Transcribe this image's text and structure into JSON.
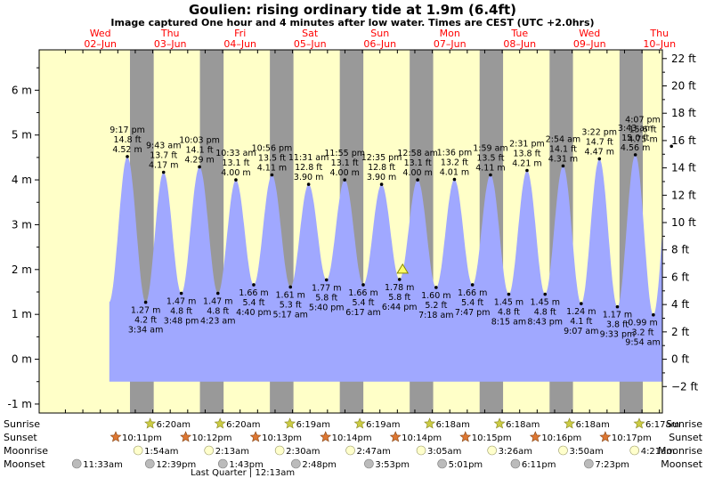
{
  "header": {
    "title": "Goulien: rising  ordinary tide at 1.9m (6.4ft)",
    "subtitle": "Image captured One hour and 4 minutes after low water. Times are CEST (UTC +2.0hrs)"
  },
  "colors": {
    "day_bg": "#ffffc8",
    "night_bg": "#999999",
    "tide_fill": "#a0a8ff",
    "day_label": "#ff0000",
    "marker": "#ffff66",
    "sun_star": "#cccc44",
    "sunset_star": "#dd7733",
    "moon": "#ffffcc",
    "moonset": "#bbbbbb"
  },
  "chart_data": {
    "type": "area",
    "title": "Goulien: rising  ordinary tide at 1.9m (6.4ft)",
    "ylabel": "",
    "ylim": [
      -1.2,
      6.9
    ],
    "left_ticks": [
      "-1 m",
      "0 m",
      "1 m",
      "2 m",
      "3 m",
      "4 m",
      "5 m",
      "6 m"
    ],
    "left_tick_values": [
      -1,
      0,
      1,
      2,
      3,
      4,
      5,
      6
    ],
    "right_ticks": [
      "−2 ft",
      "0 ft",
      "2 ft",
      "4 ft",
      "6 ft",
      "8 ft",
      "10 ft",
      "12 ft",
      "14 ft",
      "16 ft",
      "18 ft",
      "20 ft",
      "22 ft"
    ],
    "right_tick_values_ft": [
      -2,
      0,
      2,
      4,
      6,
      8,
      10,
      12,
      14,
      16,
      18,
      20,
      22
    ],
    "x_range_hours": [
      -9,
      205
    ],
    "days": [
      {
        "name": "Wed",
        "date": "02–Jun",
        "noon_h": 12
      },
      {
        "name": "Thu",
        "date": "03–Jun",
        "noon_h": 36
      },
      {
        "name": "Fri",
        "date": "04–Jun",
        "noon_h": 60
      },
      {
        "name": "Sat",
        "date": "05–Jun",
        "noon_h": 84
      },
      {
        "name": "Sun",
        "date": "06–Jun",
        "noon_h": 108
      },
      {
        "name": "Mon",
        "date": "07–Jun",
        "noon_h": 132
      },
      {
        "name": "Tue",
        "date": "08–Jun",
        "noon_h": 156
      },
      {
        "name": "Wed",
        "date": "09–Jun",
        "noon_h": 180
      },
      {
        "name": "Thu",
        "date": "10–Jun",
        "noon_h": 204
      }
    ],
    "nights": [
      {
        "start_h": 22.18,
        "end_h": 30.33
      },
      {
        "start_h": 46.2,
        "end_h": 54.33
      },
      {
        "start_h": 70.22,
        "end_h": 78.32
      },
      {
        "start_h": 94.23,
        "end_h": 102.32
      },
      {
        "start_h": 118.23,
        "end_h": 126.3
      },
      {
        "start_h": 142.25,
        "end_h": 150.3
      },
      {
        "start_h": 166.27,
        "end_h": 174.3
      },
      {
        "start_h": 190.28,
        "end_h": 198.28
      }
    ],
    "tide_range_hours": [
      -9,
      205
    ],
    "extremes": [
      {
        "t_h": 21.28,
        "m": 4.52,
        "time": "9:17 pm",
        "ft": "14.8 ft",
        "mtxt": "4.52 m",
        "type": "high"
      },
      {
        "t_h": 27.57,
        "m": 1.27,
        "time": "3:34 am",
        "ft": "4.2 ft",
        "mtxt": "1.27 m",
        "type": "low"
      },
      {
        "t_h": 33.72,
        "m": 4.17,
        "time": "9:43 am",
        "ft": "13.7 ft",
        "mtxt": "4.17 m",
        "type": "high"
      },
      {
        "t_h": 39.8,
        "m": 1.47,
        "time": "3:48 pm",
        "ft": "4.8 ft",
        "mtxt": "1.47 m",
        "type": "low"
      },
      {
        "t_h": 46.05,
        "m": 4.29,
        "time": "10:03 pm",
        "ft": "14.1 ft",
        "mtxt": "4.29 m",
        "type": "high"
      },
      {
        "t_h": 52.38,
        "m": 1.47,
        "time": "4:23 am",
        "ft": "4.8 ft",
        "mtxt": "1.47 m",
        "type": "low"
      },
      {
        "t_h": 58.55,
        "m": 4.0,
        "time": "10:33 am",
        "ft": "13.1 ft",
        "mtxt": "4.00 m",
        "type": "high"
      },
      {
        "t_h": 64.67,
        "m": 1.66,
        "time": "4:40 pm",
        "ft": "5.4 ft",
        "mtxt": "1.66 m",
        "type": "low"
      },
      {
        "t_h": 70.93,
        "m": 4.11,
        "time": "10:56 pm",
        "ft": "13.5 ft",
        "mtxt": "4.11 m",
        "type": "high"
      },
      {
        "t_h": 77.28,
        "m": 1.61,
        "time": "5:17 am",
        "ft": "5.3 ft",
        "mtxt": "1.61 m",
        "type": "low"
      },
      {
        "t_h": 83.52,
        "m": 3.9,
        "time": "11:31 am",
        "ft": "12.8 ft",
        "mtxt": "3.90 m",
        "type": "high"
      },
      {
        "t_h": 89.67,
        "m": 1.77,
        "time": "5:40 pm",
        "ft": "5.8 ft",
        "mtxt": "1.77 m",
        "type": "low"
      },
      {
        "t_h": 95.92,
        "m": 4.0,
        "time": "11:55 pm",
        "ft": "13.1 ft",
        "mtxt": "4.00 m",
        "type": "high"
      },
      {
        "t_h": 102.28,
        "m": 1.66,
        "time": "6:17 am",
        "ft": "5.4 ft",
        "mtxt": "1.66 m",
        "type": "low"
      },
      {
        "t_h": 108.58,
        "m": 3.9,
        "time": "12:35 pm",
        "ft": "12.8 ft",
        "mtxt": "3.90 m",
        "type": "high"
      },
      {
        "t_h": 114.73,
        "m": 1.78,
        "time": "6:44 pm",
        "ft": "5.8 ft",
        "mtxt": "1.78 m",
        "type": "low"
      },
      {
        "t_h": 120.97,
        "m": 4.0,
        "time": "12:58 am",
        "ft": "13.1 ft",
        "mtxt": "4.00 m",
        "type": "high"
      },
      {
        "t_h": 127.3,
        "m": 1.6,
        "time": "7:18 am",
        "ft": "5.2 ft",
        "mtxt": "1.60 m",
        "type": "low"
      },
      {
        "t_h": 133.6,
        "m": 4.01,
        "time": "1:36 pm",
        "ft": "13.2 ft",
        "mtxt": "4.01 m",
        "type": "high"
      },
      {
        "t_h": 139.78,
        "m": 1.66,
        "time": "7:47 pm",
        "ft": "5.4 ft",
        "mtxt": "1.66 m",
        "type": "low"
      },
      {
        "t_h": 145.98,
        "m": 4.11,
        "time": "1:59 am",
        "ft": "13.5 ft",
        "mtxt": "4.11 m",
        "type": "high"
      },
      {
        "t_h": 152.25,
        "m": 1.45,
        "time": "8:15 am",
        "ft": "4.8 ft",
        "mtxt": "1.45 m",
        "type": "low"
      },
      {
        "t_h": 158.52,
        "m": 4.21,
        "time": "2:31 pm",
        "ft": "13.8 ft",
        "mtxt": "4.21 m",
        "type": "high"
      },
      {
        "t_h": 164.72,
        "m": 1.45,
        "time": "8:43 pm",
        "ft": "4.8 ft",
        "mtxt": "1.45 m",
        "type": "low"
      },
      {
        "t_h": 170.9,
        "m": 4.31,
        "time": "2:54 am",
        "ft": "14.1 ft",
        "mtxt": "4.31 m",
        "type": "high"
      },
      {
        "t_h": 177.12,
        "m": 1.24,
        "time": "9:07 am",
        "ft": "4.1 ft",
        "mtxt": "1.24 m",
        "type": "low"
      },
      {
        "t_h": 183.37,
        "m": 4.47,
        "time": "3:22 pm",
        "ft": "14.7 ft",
        "mtxt": "4.47 m",
        "type": "high"
      },
      {
        "t_h": 189.55,
        "m": 1.17,
        "time": "9:33 pm",
        "ft": "3.8 ft",
        "mtxt": "1.17 m",
        "type": "low"
      },
      {
        "t_h": 195.72,
        "m": 4.56,
        "time": "3:43 am",
        "ft": "15.0 ft",
        "mtxt": "4.56 m",
        "type": "high"
      },
      {
        "t_h": 201.9,
        "m": 0.99,
        "time": "9:54 am",
        "ft": "3.2 ft",
        "mtxt": "0.99 m",
        "type": "low"
      },
      {
        "t_h": 208.12,
        "m": 4.75,
        "time": "4:07 pm",
        "ft": "15.6 ft",
        "mtxt": "4.75 m",
        "type": "high"
      }
    ],
    "current_marker": {
      "t_h": 115.8,
      "m": 1.9
    }
  },
  "almanac": {
    "row_labels": {
      "sunrise": "Sunrise",
      "sunset": "Sunset",
      "moonrise": "Moonrise",
      "moonset": "Moonset"
    },
    "sunrise": [
      {
        "h": 30.33,
        "label": "6:20am"
      },
      {
        "h": 54.33,
        "label": "6:20am"
      },
      {
        "h": 78.32,
        "label": "6:19am"
      },
      {
        "h": 102.32,
        "label": "6:19am"
      },
      {
        "h": 126.3,
        "label": "6:18am"
      },
      {
        "h": 150.3,
        "label": "6:18am"
      },
      {
        "h": 174.3,
        "label": "6:18am"
      },
      {
        "h": 198.28,
        "label": "6:17am"
      }
    ],
    "sunset": [
      {
        "h": 22.18,
        "label": "10:11pm"
      },
      {
        "h": 46.2,
        "label": "10:12pm"
      },
      {
        "h": 70.22,
        "label": "10:13pm"
      },
      {
        "h": 94.23,
        "label": "10:14pm"
      },
      {
        "h": 118.23,
        "label": "10:14pm"
      },
      {
        "h": 142.25,
        "label": "10:15pm"
      },
      {
        "h": 166.27,
        "label": "10:16pm"
      },
      {
        "h": 190.28,
        "label": "10:17pm"
      }
    ],
    "moonrise": [
      {
        "h": 25.9,
        "label": "1:54am"
      },
      {
        "h": 50.22,
        "label": "2:13am"
      },
      {
        "h": 74.5,
        "label": "2:30am"
      },
      {
        "h": 98.78,
        "label": "2:47am"
      },
      {
        "h": 123.08,
        "label": "3:05am"
      },
      {
        "h": 147.43,
        "label": "3:26am"
      },
      {
        "h": 171.83,
        "label": "3:50am"
      },
      {
        "h": 196.35,
        "label": "4:21am"
      }
    ],
    "moonset": [
      {
        "h": 11.55,
        "label": "11:33am"
      },
      {
        "h": 36.65,
        "label": "12:39pm"
      },
      {
        "h": 61.72,
        "label": "1:43pm"
      },
      {
        "h": 86.8,
        "label": "2:48pm"
      },
      {
        "h": 111.88,
        "label": "3:53pm"
      },
      {
        "h": 137.02,
        "label": "5:01pm"
      },
      {
        "h": 162.18,
        "label": "6:11pm"
      },
      {
        "h": 187.38,
        "label": "7:23pm"
      }
    ],
    "moon_phase_note": "Last Quarter | 12:13am",
    "moon_phase_h": 60.9
  }
}
